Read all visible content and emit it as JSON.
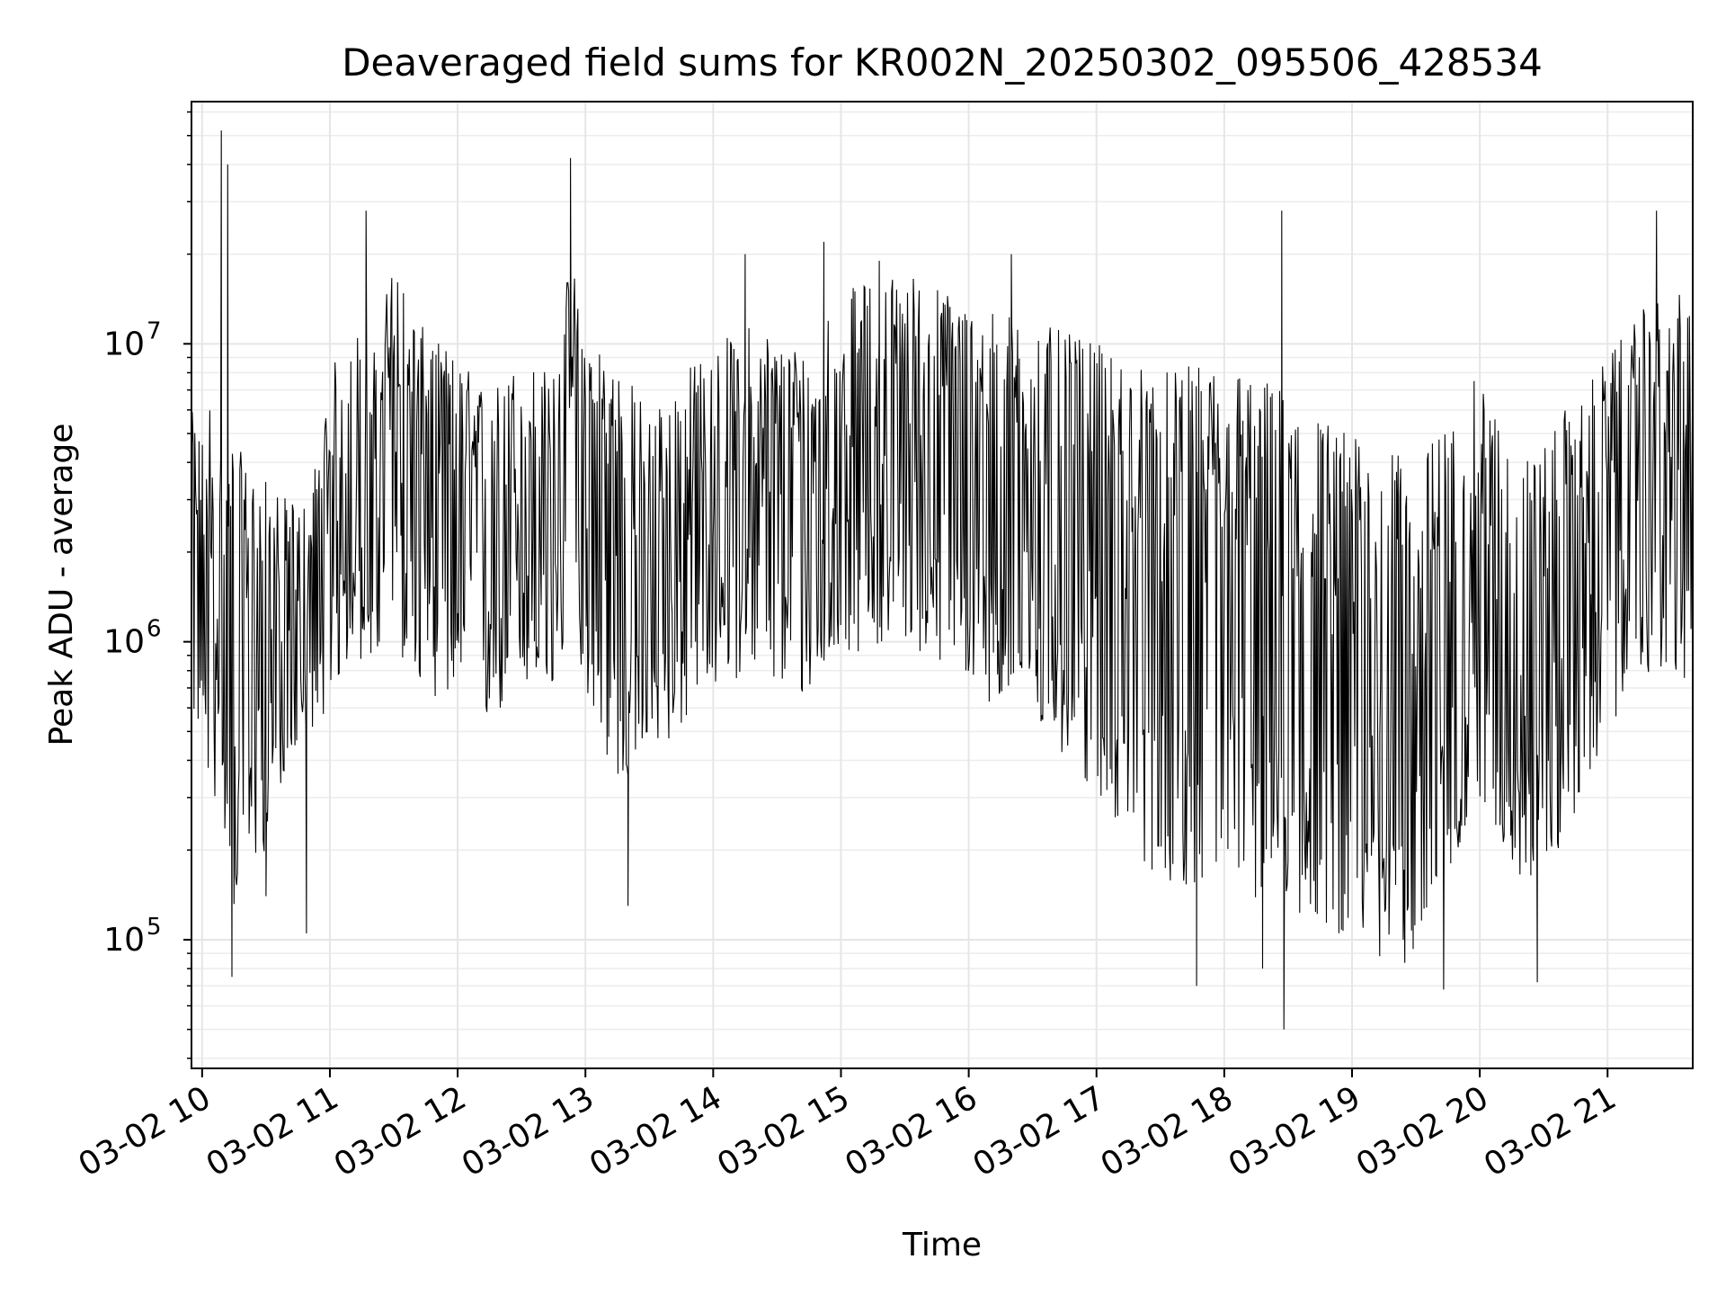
{
  "chart_data": {
    "type": "line",
    "title": "Deaveraged field sums for KR002N_20250302_095506_428534",
    "xlabel": "Time",
    "ylabel": "Peak ADU - average",
    "xlim": [
      "2025-03-02 09:55",
      "2025-03-02 21:40"
    ],
    "ylim": [
      37000,
      65000000
    ],
    "yscale": "log",
    "grid": true,
    "grid_minor": true,
    "line_color": "#000000",
    "x_ticks": [
      {
        "label": "03-02 10",
        "value": "2025-03-02 10:00"
      },
      {
        "label": "03-02 11",
        "value": "2025-03-02 11:00"
      },
      {
        "label": "03-02 12",
        "value": "2025-03-02 12:00"
      },
      {
        "label": "03-02 13",
        "value": "2025-03-02 13:00"
      },
      {
        "label": "03-02 14",
        "value": "2025-03-02 14:00"
      },
      {
        "label": "03-02 15",
        "value": "2025-03-02 15:00"
      },
      {
        "label": "03-02 16",
        "value": "2025-03-02 16:00"
      },
      {
        "label": "03-02 17",
        "value": "2025-03-02 17:00"
      },
      {
        "label": "03-02 18",
        "value": "2025-03-02 18:00"
      },
      {
        "label": "03-02 19",
        "value": "2025-03-02 19:00"
      },
      {
        "label": "03-02 20",
        "value": "2025-03-02 20:00"
      },
      {
        "label": "03-02 21",
        "value": "2025-03-02 21:00"
      }
    ],
    "y_ticks": [
      {
        "base": "10",
        "exp": "5",
        "value": 100000
      },
      {
        "base": "10",
        "exp": "6",
        "value": 1000000
      },
      {
        "base": "10",
        "exp": "7",
        "value": 10000000
      }
    ],
    "series": [
      {
        "x": [
          "2025-03-02 09:55",
          "2025-03-02 10:00",
          "2025-03-02 10:05",
          "2025-03-02 10:10",
          "2025-03-02 10:15",
          "2025-03-02 10:20",
          "2025-03-02 10:30",
          "2025-03-02 10:40",
          "2025-03-02 10:50",
          "2025-03-02 11:00",
          "2025-03-02 11:10",
          "2025-03-02 11:20",
          "2025-03-02 11:30",
          "2025-03-02 11:40",
          "2025-03-02 12:00",
          "2025-03-02 12:15",
          "2025-03-02 12:30",
          "2025-03-02 12:45",
          "2025-03-02 12:53",
          "2025-03-02 13:00",
          "2025-03-02 13:15",
          "2025-03-02 13:30",
          "2025-03-02 13:45",
          "2025-03-02 14:00",
          "2025-03-02 14:20",
          "2025-03-02 14:40",
          "2025-03-02 15:00",
          "2025-03-02 15:30",
          "2025-03-02 16:00",
          "2025-03-02 16:30",
          "2025-03-02 17:00",
          "2025-03-02 17:30",
          "2025-03-02 18:00",
          "2025-03-02 18:30",
          "2025-03-02 19:00",
          "2025-03-02 19:30",
          "2025-03-02 20:00",
          "2025-03-02 20:20",
          "2025-03-02 20:40",
          "2025-03-02 21:00",
          "2025-03-02 21:20",
          "2025-03-02 21:40"
        ],
        "y": [
          2000000,
          1500000,
          1200000,
          1000000,
          1200000,
          900000,
          1000000,
          800000,
          900000,
          1500000,
          3000000,
          2500000,
          8000000,
          4000000,
          3000000,
          2000000,
          3000000,
          2500000,
          5000000,
          3000000,
          2000000,
          1500000,
          2000000,
          2500000,
          3000000,
          2500000,
          4000000,
          4500000,
          3500000,
          3000000,
          2500000,
          1500000,
          1500000,
          1200000,
          800000,
          600000,
          1500000,
          700000,
          1200000,
          2500000,
          3500000,
          3000000
        ],
        "y_lo": [
          600000,
          400000,
          300000,
          250000,
          120000,
          150000,
          200000,
          400000,
          500000,
          600000,
          900000,
          800000,
          1000000,
          700000,
          600000,
          500000,
          700000,
          600000,
          1200000,
          700000,
          300000,
          400000,
          500000,
          700000,
          800000,
          600000,
          900000,
          1000000,
          700000,
          500000,
          300000,
          150000,
          150000,
          120000,
          100000,
          80000,
          300000,
          150000,
          200000,
          500000,
          800000,
          700000
        ],
        "y_hi": [
          6000000,
          5000000,
          8000000,
          4000000,
          5000000,
          4000000,
          3500000,
          3000000,
          3000000,
          8000000,
          12000000,
          9000000,
          20000000,
          12000000,
          9000000,
          7000000,
          9000000,
          8000000,
          20000000,
          12000000,
          9000000,
          6000000,
          8000000,
          10000000,
          12000000,
          10000000,
          15000000,
          18000000,
          14000000,
          12000000,
          10000000,
          8000000,
          9000000,
          7000000,
          5000000,
          4000000,
          8000000,
          4000000,
          6000000,
          9000000,
          14000000,
          15000000
        ],
        "spikes": [
          {
            "x": "2025-03-02 10:09",
            "y": 52000000
          },
          {
            "x": "2025-03-02 10:12",
            "y": 40000000
          },
          {
            "x": "2025-03-02 10:14",
            "y": 75000
          },
          {
            "x": "2025-03-02 12:53",
            "y": 42000000
          },
          {
            "x": "2025-03-02 11:17",
            "y": 28000000
          },
          {
            "x": "2025-03-02 18:27",
            "y": 28000000
          },
          {
            "x": "2025-03-02 18:28",
            "y": 50000
          },
          {
            "x": "2025-03-02 17:47",
            "y": 70000
          },
          {
            "x": "2025-03-02 19:43",
            "y": 68000
          },
          {
            "x": "2025-03-02 20:27",
            "y": 72000
          },
          {
            "x": "2025-03-02 21:23",
            "y": 28000000
          },
          {
            "x": "2025-03-02 10:30",
            "y": 140000
          },
          {
            "x": "2025-03-02 10:49",
            "y": 105000
          },
          {
            "x": "2025-03-02 13:20",
            "y": 130000
          },
          {
            "x": "2025-03-02 18:18",
            "y": 80000
          },
          {
            "x": "2025-03-02 19:13",
            "y": 88000
          },
          {
            "x": "2025-03-02 14:15",
            "y": 20000000
          },
          {
            "x": "2025-03-02 14:52",
            "y": 22000000
          },
          {
            "x": "2025-03-02 15:18",
            "y": 19000000
          },
          {
            "x": "2025-03-02 16:20",
            "y": 20000000
          }
        ]
      }
    ]
  }
}
